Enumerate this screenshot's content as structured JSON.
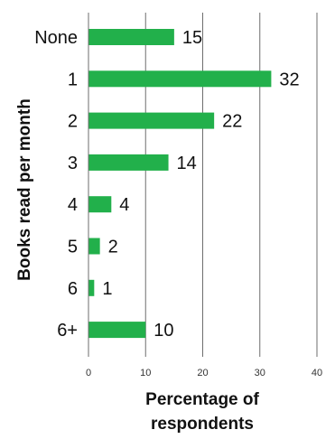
{
  "chart_data": {
    "type": "bar",
    "orientation": "horizontal",
    "categories": [
      "None",
      "1",
      "2",
      "3",
      "4",
      "5",
      "6",
      "6+"
    ],
    "values": [
      15,
      32,
      22,
      14,
      4,
      2,
      1,
      10
    ],
    "data_labels": [
      "15",
      "32",
      "22",
      "14",
      "4",
      "2",
      "1",
      "10"
    ],
    "xlim": [
      0,
      40
    ],
    "xticks": [
      0,
      10,
      20,
      30,
      40
    ],
    "xtick_labels": [
      "0",
      "10",
      "20",
      "30",
      "40"
    ],
    "xlabel": "Percentage of respondents",
    "xlabel_lines": [
      "Percentage of",
      "respondents"
    ],
    "ylabel": "Books read per month",
    "grid": "vertical",
    "legend": "none",
    "bar_color": "#22b04b"
  }
}
